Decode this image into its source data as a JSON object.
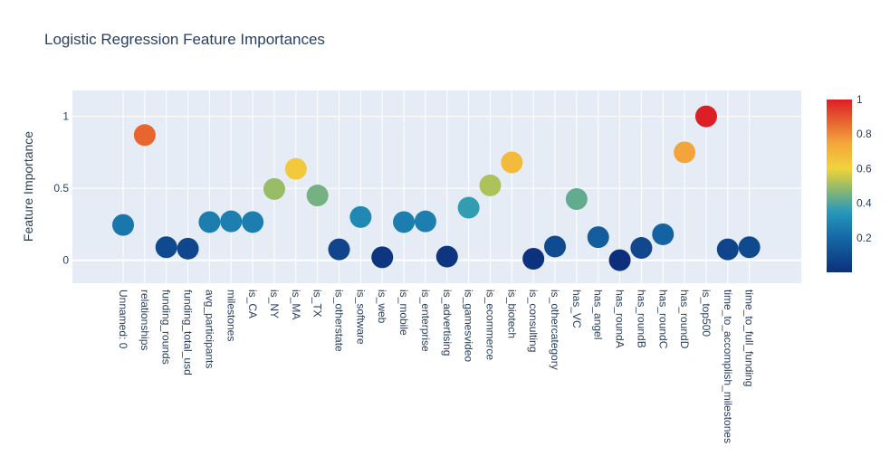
{
  "chart_data": {
    "type": "scatter",
    "title": "Logistic Regression Feature Importances",
    "xlabel": "",
    "ylabel": "Feature Importance",
    "ylim": [
      -0.16,
      1.18
    ],
    "yticks": [
      0,
      0.5,
      1
    ],
    "ytick_labels": [
      "0",
      "0.5",
      "1"
    ],
    "grid": true,
    "categories": [
      "Unnamed: 0",
      "relationships",
      "funding_rounds",
      "funding_total_usd",
      "avg_participants",
      "milestones",
      "is_CA",
      "is_NY",
      "is_MA",
      "is_TX",
      "is_otherstate",
      "is_software",
      "is_web",
      "is_mobile",
      "is_enterprise",
      "is_advertising",
      "is_gamesvideo",
      "is_ecommerce",
      "is_biotech",
      "is_consulting",
      "is_othercategory",
      "has_VC",
      "has_angel",
      "has_roundA",
      "has_roundB",
      "has_roundC",
      "has_roundD",
      "is_top500",
      "time_to_accomplish_milestones",
      "time_to_full_funding"
    ],
    "values": [
      0.245,
      0.87,
      0.09,
      0.08,
      0.265,
      0.27,
      0.265,
      0.495,
      0.635,
      0.45,
      0.075,
      0.3,
      0.02,
      0.265,
      0.27,
      0.025,
      0.365,
      0.52,
      0.68,
      0.01,
      0.095,
      0.425,
      0.16,
      0.0,
      0.085,
      0.18,
      0.75,
      1.0,
      0.075,
      0.09
    ],
    "colorscale": {
      "stops": [
        [
          0,
          "#0d2f7b"
        ],
        [
          0.2,
          "#1468a6"
        ],
        [
          0.35,
          "#2699ba"
        ],
        [
          0.5,
          "#9dbd64"
        ],
        [
          0.6,
          "#f1d43b"
        ],
        [
          0.75,
          "#f3a53b"
        ],
        [
          1,
          "#dc1f25"
        ]
      ],
      "tick_values": [
        0.2,
        0.4,
        0.6,
        0.8,
        1
      ],
      "tick_labels": [
        "0.2",
        "0.4",
        "0.6",
        "0.8",
        "1"
      ]
    }
  }
}
